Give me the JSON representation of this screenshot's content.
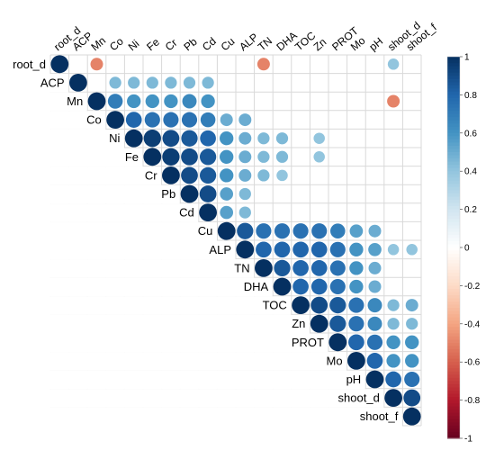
{
  "chart_data": {
    "type": "heatmap",
    "title": "",
    "variables": [
      "root_d",
      "ACP",
      "Mn",
      "Co",
      "Ni",
      "Fe",
      "Cr",
      "Pb",
      "Cd",
      "Cu",
      "ALP",
      "TN",
      "DHA",
      "TOC",
      "Zn",
      "PROT",
      "Mo",
      "pH",
      "shoot_d",
      "shoot_f"
    ],
    "layout": "upper-triangle",
    "marker": "circle (size and colour encode r)",
    "color_scale": {
      "min": -1,
      "max": 1,
      "low_color": "#67001f",
      "mid_color": "#ffffff",
      "high_color": "#053061",
      "ticks": [
        "1",
        "0.8",
        "0.6",
        "0.4",
        "0.2",
        "0",
        "-0.2",
        "-0.4",
        "-0.6",
        "-0.8",
        "-1"
      ]
    },
    "cells": [
      {
        "row": "root_d",
        "col": "root_d",
        "r": 1.0
      },
      {
        "row": "root_d",
        "col": "Mn",
        "r": -0.5
      },
      {
        "row": "root_d",
        "col": "TN",
        "r": -0.5
      },
      {
        "row": "root_d",
        "col": "shoot_d",
        "r": 0.4
      },
      {
        "row": "ACP",
        "col": "ACP",
        "r": 1.0
      },
      {
        "row": "ACP",
        "col": "Co",
        "r": 0.45
      },
      {
        "row": "ACP",
        "col": "Ni",
        "r": 0.45
      },
      {
        "row": "ACP",
        "col": "Fe",
        "r": 0.45
      },
      {
        "row": "ACP",
        "col": "Cr",
        "r": 0.45
      },
      {
        "row": "ACP",
        "col": "Pb",
        "r": 0.45
      },
      {
        "row": "ACP",
        "col": "Cd",
        "r": 0.45
      },
      {
        "row": "Mn",
        "col": "Mn",
        "r": 1.0
      },
      {
        "row": "Mn",
        "col": "Co",
        "r": 0.7
      },
      {
        "row": "Mn",
        "col": "Ni",
        "r": 0.6
      },
      {
        "row": "Mn",
        "col": "Fe",
        "r": 0.6
      },
      {
        "row": "Mn",
        "col": "Cr",
        "r": 0.6
      },
      {
        "row": "Mn",
        "col": "Pb",
        "r": 0.65
      },
      {
        "row": "Mn",
        "col": "Cd",
        "r": 0.6
      },
      {
        "row": "Mn",
        "col": "shoot_d",
        "r": -0.5
      },
      {
        "row": "Co",
        "col": "Co",
        "r": 1.0
      },
      {
        "row": "Co",
        "col": "Ni",
        "r": 0.8
      },
      {
        "row": "Co",
        "col": "Fe",
        "r": 0.75
      },
      {
        "row": "Co",
        "col": "Cr",
        "r": 0.75
      },
      {
        "row": "Co",
        "col": "Pb",
        "r": 0.75
      },
      {
        "row": "Co",
        "col": "Cd",
        "r": 0.7
      },
      {
        "row": "Co",
        "col": "Cu",
        "r": 0.5
      },
      {
        "row": "Co",
        "col": "ALP",
        "r": 0.5
      },
      {
        "row": "Ni",
        "col": "Ni",
        "r": 1.0
      },
      {
        "row": "Ni",
        "col": "Fe",
        "r": 0.95
      },
      {
        "row": "Ni",
        "col": "Cr",
        "r": 0.9
      },
      {
        "row": "Ni",
        "col": "Pb",
        "r": 0.85
      },
      {
        "row": "Ni",
        "col": "Cd",
        "r": 0.8
      },
      {
        "row": "Ni",
        "col": "Cu",
        "r": 0.6
      },
      {
        "row": "Ni",
        "col": "ALP",
        "r": 0.5
      },
      {
        "row": "Ni",
        "col": "TN",
        "r": 0.45
      },
      {
        "row": "Ni",
        "col": "DHA",
        "r": 0.45
      },
      {
        "row": "Ni",
        "col": "Zn",
        "r": 0.4
      },
      {
        "row": "Fe",
        "col": "Fe",
        "r": 1.0
      },
      {
        "row": "Fe",
        "col": "Cr",
        "r": 0.95
      },
      {
        "row": "Fe",
        "col": "Pb",
        "r": 0.9
      },
      {
        "row": "Fe",
        "col": "Cd",
        "r": 0.85
      },
      {
        "row": "Fe",
        "col": "Cu",
        "r": 0.6
      },
      {
        "row": "Fe",
        "col": "ALP",
        "r": 0.5
      },
      {
        "row": "Fe",
        "col": "TN",
        "r": 0.45
      },
      {
        "row": "Fe",
        "col": "DHA",
        "r": 0.45
      },
      {
        "row": "Fe",
        "col": "Zn",
        "r": 0.4
      },
      {
        "row": "Cr",
        "col": "Cr",
        "r": 1.0
      },
      {
        "row": "Cr",
        "col": "Pb",
        "r": 0.9
      },
      {
        "row": "Cr",
        "col": "Cd",
        "r": 0.85
      },
      {
        "row": "Cr",
        "col": "Cu",
        "r": 0.6
      },
      {
        "row": "Cr",
        "col": "ALP",
        "r": 0.5
      },
      {
        "row": "Cr",
        "col": "TN",
        "r": 0.45
      },
      {
        "row": "Cr",
        "col": "DHA",
        "r": 0.4
      },
      {
        "row": "Pb",
        "col": "Pb",
        "r": 1.0
      },
      {
        "row": "Pb",
        "col": "Cd",
        "r": 0.9
      },
      {
        "row": "Pb",
        "col": "Cu",
        "r": 0.55
      },
      {
        "row": "Pb",
        "col": "ALP",
        "r": 0.45
      },
      {
        "row": "Cd",
        "col": "Cd",
        "r": 1.0
      },
      {
        "row": "Cd",
        "col": "Cu",
        "r": 0.55
      },
      {
        "row": "Cd",
        "col": "ALP",
        "r": 0.45
      },
      {
        "row": "Cu",
        "col": "Cu",
        "r": 1.0
      },
      {
        "row": "Cu",
        "col": "ALP",
        "r": 0.85
      },
      {
        "row": "Cu",
        "col": "TN",
        "r": 0.75
      },
      {
        "row": "Cu",
        "col": "DHA",
        "r": 0.75
      },
      {
        "row": "Cu",
        "col": "TOC",
        "r": 0.75
      },
      {
        "row": "Cu",
        "col": "Zn",
        "r": 0.75
      },
      {
        "row": "Cu",
        "col": "PROT",
        "r": 0.7
      },
      {
        "row": "Cu",
        "col": "Mo",
        "r": 0.55
      },
      {
        "row": "Cu",
        "col": "pH",
        "r": 0.5
      },
      {
        "row": "ALP",
        "col": "ALP",
        "r": 1.0
      },
      {
        "row": "ALP",
        "col": "TN",
        "r": 0.8
      },
      {
        "row": "ALP",
        "col": "DHA",
        "r": 0.8
      },
      {
        "row": "ALP",
        "col": "TOC",
        "r": 0.8
      },
      {
        "row": "ALP",
        "col": "Zn",
        "r": 0.8
      },
      {
        "row": "ALP",
        "col": "PROT",
        "r": 0.75
      },
      {
        "row": "ALP",
        "col": "Mo",
        "r": 0.6
      },
      {
        "row": "ALP",
        "col": "pH",
        "r": 0.55
      },
      {
        "row": "ALP",
        "col": "shoot_d",
        "r": 0.4
      },
      {
        "row": "ALP",
        "col": "shoot_f",
        "r": 0.4
      },
      {
        "row": "TN",
        "col": "TN",
        "r": 1.0
      },
      {
        "row": "TN",
        "col": "DHA",
        "r": 0.85
      },
      {
        "row": "TN",
        "col": "TOC",
        "r": 0.8
      },
      {
        "row": "TN",
        "col": "Zn",
        "r": 0.8
      },
      {
        "row": "TN",
        "col": "PROT",
        "r": 0.75
      },
      {
        "row": "TN",
        "col": "Mo",
        "r": 0.6
      },
      {
        "row": "TN",
        "col": "pH",
        "r": 0.5
      },
      {
        "row": "DHA",
        "col": "DHA",
        "r": 1.0
      },
      {
        "row": "DHA",
        "col": "TOC",
        "r": 0.8
      },
      {
        "row": "DHA",
        "col": "Zn",
        "r": 0.8
      },
      {
        "row": "DHA",
        "col": "PROT",
        "r": 0.75
      },
      {
        "row": "DHA",
        "col": "Mo",
        "r": 0.6
      },
      {
        "row": "DHA",
        "col": "pH",
        "r": 0.5
      },
      {
        "row": "TOC",
        "col": "TOC",
        "r": 1.0
      },
      {
        "row": "TOC",
        "col": "Zn",
        "r": 0.9
      },
      {
        "row": "TOC",
        "col": "PROT",
        "r": 0.85
      },
      {
        "row": "TOC",
        "col": "Mo",
        "r": 0.75
      },
      {
        "row": "TOC",
        "col": "pH",
        "r": 0.65
      },
      {
        "row": "TOC",
        "col": "shoot_d",
        "r": 0.45
      },
      {
        "row": "TOC",
        "col": "shoot_f",
        "r": 0.5
      },
      {
        "row": "Zn",
        "col": "Zn",
        "r": 1.0
      },
      {
        "row": "Zn",
        "col": "PROT",
        "r": 0.85
      },
      {
        "row": "Zn",
        "col": "Mo",
        "r": 0.75
      },
      {
        "row": "Zn",
        "col": "pH",
        "r": 0.65
      },
      {
        "row": "Zn",
        "col": "shoot_d",
        "r": 0.45
      },
      {
        "row": "Zn",
        "col": "shoot_f",
        "r": 0.45
      },
      {
        "row": "PROT",
        "col": "PROT",
        "r": 1.0
      },
      {
        "row": "PROT",
        "col": "Mo",
        "r": 0.8
      },
      {
        "row": "PROT",
        "col": "pH",
        "r": 0.75
      },
      {
        "row": "PROT",
        "col": "shoot_d",
        "r": 0.6
      },
      {
        "row": "PROT",
        "col": "shoot_f",
        "r": 0.6
      },
      {
        "row": "Mo",
        "col": "Mo",
        "r": 1.0
      },
      {
        "row": "Mo",
        "col": "pH",
        "r": 0.8
      },
      {
        "row": "Mo",
        "col": "shoot_d",
        "r": 0.6
      },
      {
        "row": "Mo",
        "col": "shoot_f",
        "r": 0.6
      },
      {
        "row": "pH",
        "col": "pH",
        "r": 1.0
      },
      {
        "row": "pH",
        "col": "shoot_d",
        "r": 0.8
      },
      {
        "row": "pH",
        "col": "shoot_f",
        "r": 0.75
      },
      {
        "row": "shoot_d",
        "col": "shoot_d",
        "r": 1.0
      },
      {
        "row": "shoot_d",
        "col": "shoot_f",
        "r": 0.9
      },
      {
        "row": "shoot_f",
        "col": "shoot_f",
        "r": 1.0
      }
    ]
  }
}
